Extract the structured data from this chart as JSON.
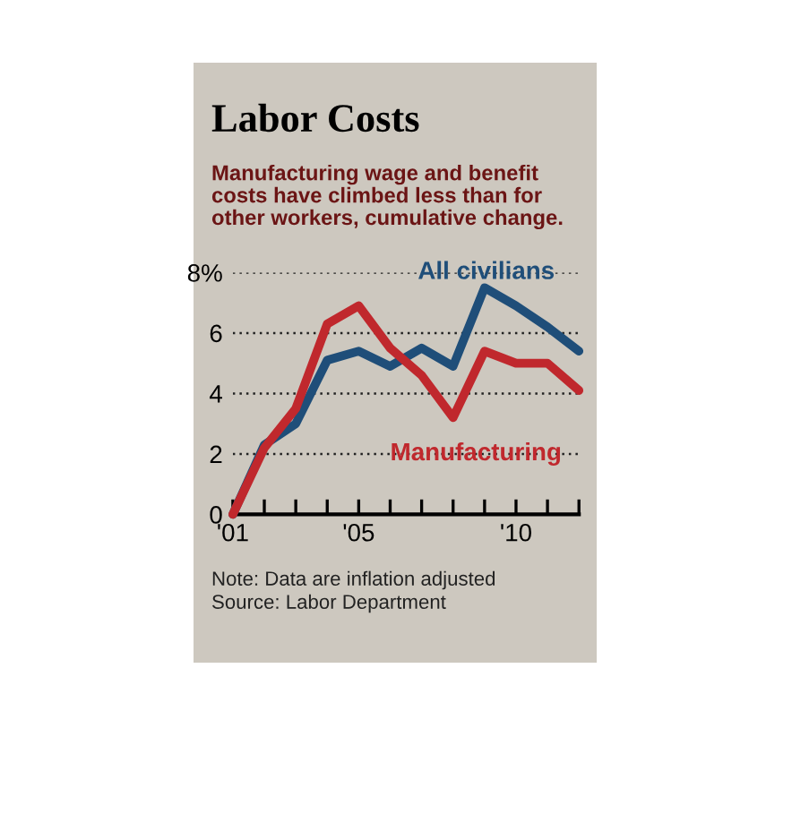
{
  "chart_data": {
    "type": "line",
    "title": "Labor Costs",
    "subtitle": "Manufacturing wage and benefit costs have climbed less than for other workers, cumulative change.",
    "x": [
      2001,
      2002,
      2003,
      2004,
      2005,
      2006,
      2007,
      2008,
      2009,
      2010,
      2011,
      2012
    ],
    "series": [
      {
        "name": "All civilians",
        "color": "#1f4e79",
        "values": [
          0,
          2.3,
          3.0,
          5.1,
          5.4,
          4.9,
          5.5,
          4.9,
          7.5,
          6.9,
          6.2,
          5.4
        ]
      },
      {
        "name": "Manufacturing",
        "color": "#c0282d",
        "values": [
          0,
          2.2,
          3.5,
          6.3,
          6.9,
          5.5,
          4.6,
          3.2,
          5.4,
          5.0,
          5.0,
          4.1
        ]
      }
    ],
    "xlim": [
      2001,
      2012
    ],
    "xticks": [
      {
        "value": 2001,
        "label": "'01"
      },
      {
        "value": 2002,
        "label": null
      },
      {
        "value": 2003,
        "label": null
      },
      {
        "value": 2004,
        "label": null
      },
      {
        "value": 2005,
        "label": "'05"
      },
      {
        "value": 2006,
        "label": null
      },
      {
        "value": 2007,
        "label": null
      },
      {
        "value": 2008,
        "label": null
      },
      {
        "value": 2009,
        "label": null
      },
      {
        "value": 2010,
        "label": "'10"
      },
      {
        "value": 2011,
        "label": null
      },
      {
        "value": 2012,
        "label": null
      }
    ],
    "ylim": [
      0,
      8
    ],
    "yticks": [
      0,
      2,
      4,
      6,
      {
        "value": 8,
        "label": "8%"
      }
    ],
    "grid": "y",
    "legend": false,
    "marker": "none",
    "line_style": "solid",
    "annotations": [
      "Note: Data are inflation adjusted",
      "Source: Labor Department"
    ]
  }
}
